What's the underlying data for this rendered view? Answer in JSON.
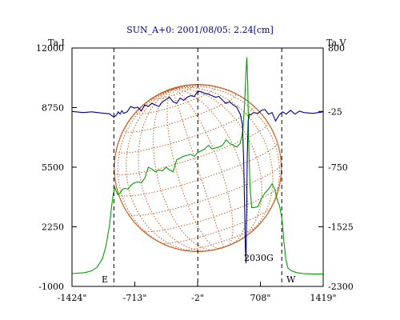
{
  "chart_data": {
    "type": "line",
    "title": "SUN_A+0: 2001/08/05: 2.24[cm]",
    "left_axis": {
      "label": "Ta,I",
      "range": [
        -1000,
        12000
      ],
      "ticks": [
        "12000",
        "8750",
        "5500",
        "2250",
        "-1000"
      ],
      "tick_values": [
        12000,
        8750,
        5500,
        2250,
        -1000
      ]
    },
    "right_axis": {
      "label": "Ta,V",
      "range": [
        -2300,
        800
      ],
      "ticks": [
        "800",
        "-25",
        "-750",
        "-1525",
        "-2300"
      ],
      "tick_values": [
        800,
        -25,
        -750,
        -1525,
        -2300
      ]
    },
    "x_axis": {
      "range": [
        -1424,
        1419
      ],
      "ticks": [
        "-1424\"",
        "-713\"",
        "-2\"",
        "708\"",
        "1419\""
      ],
      "tick_values": [
        -1424,
        -713,
        -2,
        708,
        1419
      ]
    },
    "limb_markers": {
      "east": "E",
      "west": "W",
      "x_values": [
        -950,
        950
      ]
    },
    "center_marker_x": 0,
    "disk_radius_arcsec": 945,
    "annotation": "2030G",
    "annotation_x": 540,
    "series": [
      {
        "axis": "left",
        "color": "#00a000",
        "x": [
          -1424,
          -1280,
          -1200,
          -1140,
          -1080,
          -1040,
          -1000,
          -975,
          -955,
          -940,
          -925,
          -905,
          -880,
          -850,
          -820,
          -790,
          -760,
          -720,
          -680,
          -640,
          -600,
          -560,
          -520,
          -480,
          -440,
          -400,
          -360,
          -320,
          -280,
          -240,
          -200,
          -160,
          -120,
          -80,
          -40,
          0,
          40,
          80,
          120,
          160,
          200,
          240,
          280,
          320,
          360,
          400,
          440,
          480,
          510,
          530,
          545,
          555,
          565,
          575,
          590,
          610,
          640,
          680,
          720,
          760,
          800,
          840,
          870,
          900,
          925,
          945,
          960,
          975,
          995,
          1020,
          1060,
          1120,
          1200,
          1300,
          1419
        ],
        "y": [
          -300,
          -250,
          -150,
          50,
          500,
          1200,
          2300,
          3400,
          4100,
          4400,
          4200,
          4000,
          4100,
          4300,
          4350,
          4300,
          4500,
          4650,
          4700,
          4650,
          4900,
          5500,
          5400,
          5250,
          5350,
          5300,
          5500,
          5350,
          5250,
          5900,
          6000,
          6100,
          6150,
          6200,
          6100,
          6300,
          6400,
          6500,
          6700,
          6500,
          6550,
          6600,
          6700,
          7000,
          6800,
          6700,
          6600,
          6800,
          7500,
          9000,
          10700,
          11500,
          10000,
          7000,
          4500,
          3300,
          3300,
          3350,
          3800,
          4100,
          4300,
          4600,
          4300,
          3700,
          3400,
          2900,
          2300,
          1400,
          500,
          0,
          -150,
          -250,
          -300,
          -320,
          -330
        ]
      },
      {
        "axis": "right",
        "color": "#00008b",
        "x": [
          -1424,
          -1300,
          -1200,
          -1100,
          -1000,
          -950,
          -920,
          -900,
          -880,
          -860,
          -840,
          -800,
          -760,
          -720,
          -680,
          -640,
          -600,
          -560,
          -520,
          -480,
          -440,
          -400,
          -360,
          -320,
          -280,
          -240,
          -200,
          -160,
          -120,
          -80,
          -40,
          0,
          40,
          80,
          120,
          160,
          200,
          240,
          280,
          320,
          360,
          400,
          440,
          480,
          505,
          520,
          530,
          538,
          545,
          552,
          560,
          570,
          585,
          600,
          630,
          680,
          720,
          760,
          800,
          840,
          880,
          920,
          960,
          1000,
          1050,
          1100,
          1150,
          1200,
          1300,
          1419
        ],
        "y": [
          -25,
          -40,
          -30,
          -45,
          -55,
          -100,
          -70,
          -30,
          -60,
          -15,
          -50,
          -30,
          40,
          20,
          30,
          -20,
          60,
          40,
          80,
          60,
          40,
          100,
          130,
          160,
          100,
          80,
          150,
          120,
          160,
          180,
          170,
          240,
          230,
          210,
          200,
          180,
          160,
          170,
          120,
          80,
          100,
          60,
          30,
          -60,
          -200,
          -700,
          -1300,
          -1800,
          -2000,
          -1400,
          -600,
          -150,
          -60,
          -70,
          -40,
          -50,
          -10,
          0,
          -60,
          -40,
          -150,
          -70,
          -30,
          -60,
          -10,
          -60,
          -20,
          -40,
          -50,
          -30
        ]
      }
    ]
  }
}
